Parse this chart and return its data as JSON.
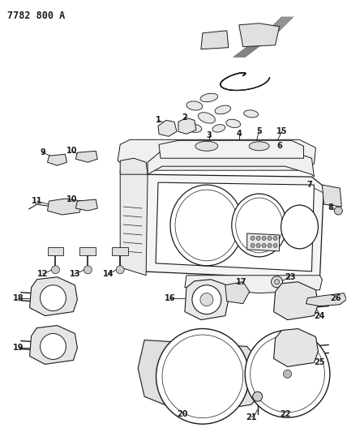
{
  "title": "7782 800 A",
  "bg_color": "#ffffff",
  "line_color": "#1a1a1a",
  "title_fontsize": 8.5,
  "label_fontsize": 7,
  "figsize": [
    4.28,
    5.33
  ],
  "dpi": 100
}
